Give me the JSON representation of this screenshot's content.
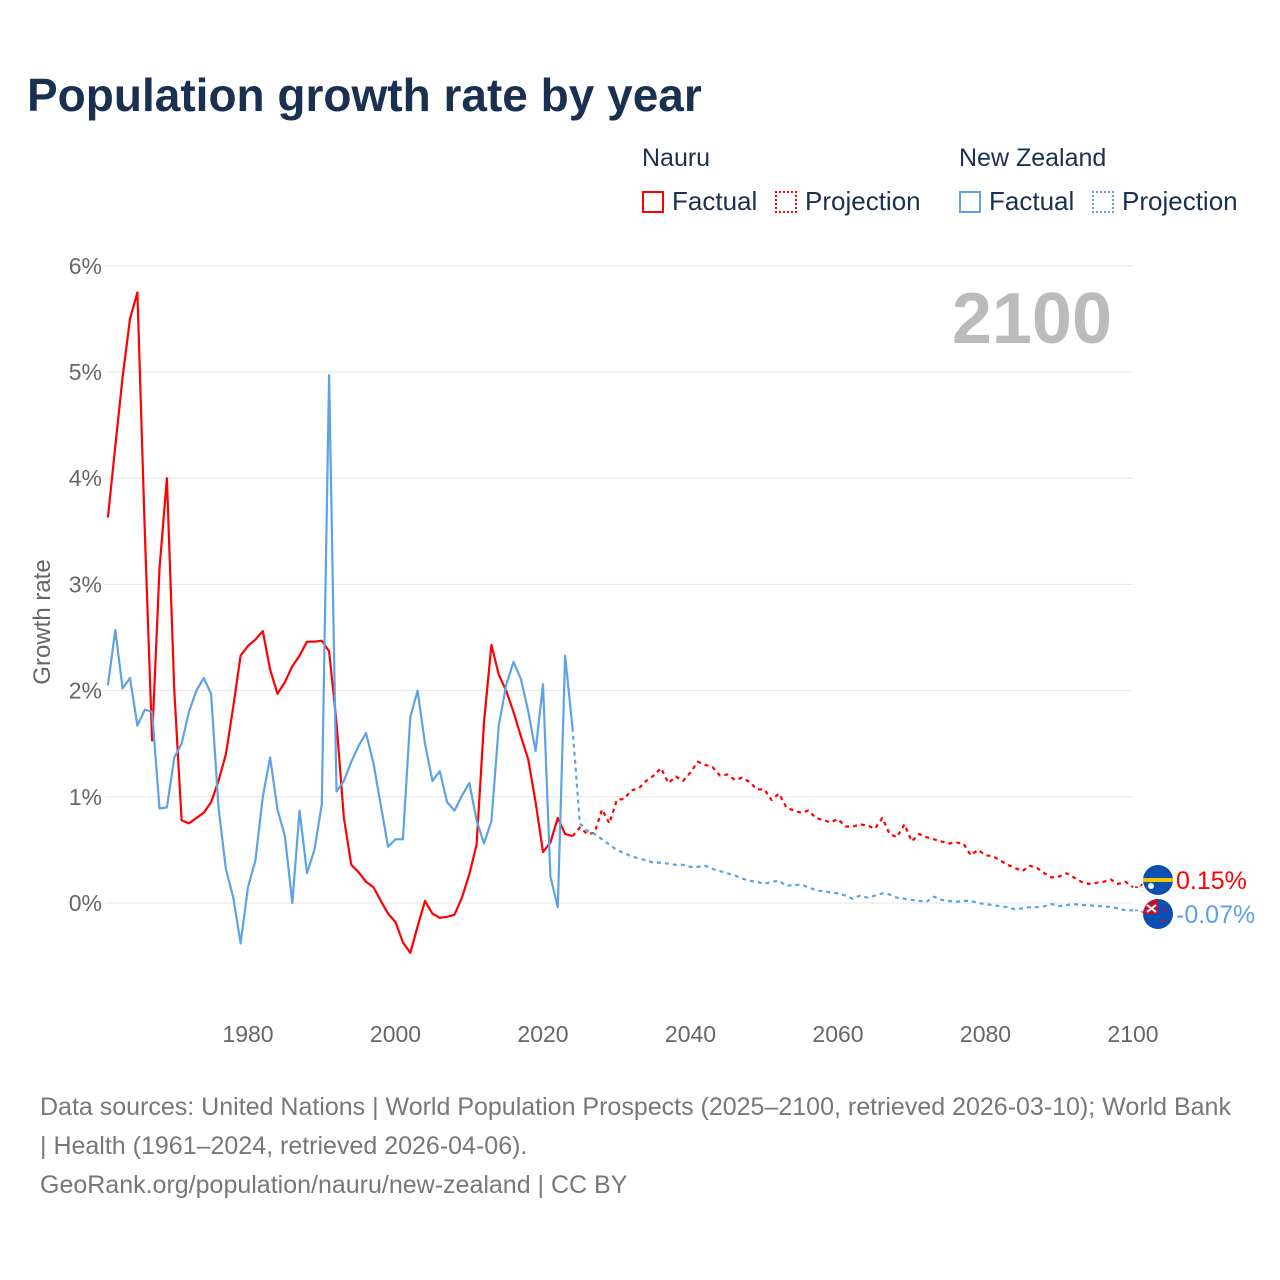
{
  "title": "Population growth rate by year",
  "legend": {
    "groups": [
      {
        "name": "Nauru",
        "factual": "Factual",
        "projection": "Projection",
        "color": "#ff0000"
      },
      {
        "name": "New Zealand",
        "factual": "Factual",
        "projection": "Projection",
        "color": "#5ba3e6"
      }
    ]
  },
  "chart_data": {
    "type": "line",
    "title": "Population growth rate by year",
    "xlabel": "",
    "ylabel": "Growth rate",
    "xlim": [
      1961,
      2100
    ],
    "ylim": [
      -0.8,
      6
    ],
    "x_ticks": [
      1980,
      2000,
      2020,
      2040,
      2060,
      2080,
      2100
    ],
    "x_tick_labels": [
      "1980",
      "2000",
      "2020",
      "2040",
      "2060",
      "2080",
      "2100"
    ],
    "y_ticks": [
      0,
      1,
      2,
      3,
      4,
      5,
      6
    ],
    "y_tick_labels": [
      "0%",
      "1%",
      "2%",
      "3%",
      "4%",
      "5%",
      "6%"
    ],
    "grid": true,
    "year_overlay": "2100",
    "series": [
      {
        "name": "Nauru Factual",
        "color": "#ff0000",
        "style": "solid",
        "x_start": 1961,
        "values": [
          3.63,
          4.3,
          4.95,
          5.5,
          5.75,
          3.5,
          1.53,
          3.15,
          4.0,
          2.0,
          0.78,
          0.75,
          0.8,
          0.85,
          0.95,
          1.15,
          1.4,
          1.85,
          2.33,
          2.42,
          2.48,
          2.56,
          2.2,
          1.97,
          2.08,
          2.23,
          2.33,
          2.46,
          2.46,
          2.47,
          2.37,
          1.7,
          0.8,
          0.36,
          0.29,
          0.2,
          0.15,
          0.02,
          -0.1,
          -0.18,
          -0.37,
          -0.47,
          -0.22,
          0.02,
          -0.1,
          -0.14,
          -0.13,
          -0.11,
          0.05,
          0.27,
          0.55,
          1.7,
          2.43,
          2.15,
          2.0,
          1.8,
          1.57,
          1.35,
          0.95,
          0.48,
          0.57,
          0.8,
          0.65,
          0.63
        ]
      },
      {
        "name": "Nauru Projection",
        "color": "#ff0000",
        "style": "dotted",
        "x_start": 2024,
        "values": [
          0.63,
          0.71,
          0.65,
          0.66,
          0.88,
          0.75,
          0.97,
          0.98,
          1.06,
          1.08,
          1.15,
          1.2,
          1.27,
          1.13,
          1.19,
          1.15,
          1.23,
          1.33,
          1.3,
          1.28,
          1.2,
          1.21,
          1.16,
          1.18,
          1.14,
          1.07,
          1.07,
          0.97,
          1.03,
          0.9,
          0.87,
          0.85,
          0.87,
          0.8,
          0.78,
          0.76,
          0.79,
          0.72,
          0.72,
          0.74,
          0.73,
          0.7,
          0.8,
          0.65,
          0.62,
          0.74,
          0.58,
          0.65,
          0.62,
          0.6,
          0.58,
          0.56,
          0.57,
          0.56,
          0.45,
          0.5,
          0.45,
          0.44,
          0.4,
          0.36,
          0.33,
          0.3,
          0.35,
          0.33,
          0.28,
          0.24,
          0.25,
          0.28,
          0.24,
          0.2,
          0.18,
          0.19,
          0.2,
          0.22,
          0.18,
          0.2,
          0.15
        ]
      },
      {
        "name": "New Zealand Factual",
        "color": "#5ba3e6",
        "style": "solid",
        "x_start": 1961,
        "values": [
          2.05,
          2.57,
          2.02,
          2.12,
          1.67,
          1.82,
          1.8,
          0.89,
          0.9,
          1.37,
          1.5,
          1.8,
          2.0,
          2.12,
          1.97,
          0.9,
          0.32,
          0.05,
          -0.38,
          0.15,
          0.4,
          1.0,
          1.37,
          0.88,
          0.63,
          0.0,
          0.87,
          0.28,
          0.5,
          0.93,
          4.97,
          1.05,
          1.15,
          1.33,
          1.48,
          1.6,
          1.32,
          0.92,
          0.53,
          0.6,
          0.6,
          1.75,
          2.0,
          1.5,
          1.15,
          1.24,
          0.95,
          0.87,
          1.01,
          1.13,
          0.78,
          0.56,
          0.77,
          1.67,
          2.05,
          2.27,
          2.11,
          1.8,
          1.43,
          2.06,
          0.25,
          -0.04,
          2.33,
          1.65
        ]
      },
      {
        "name": "New Zealand Projection",
        "color": "#5ba3e6",
        "style": "dotted",
        "x_start": 2024,
        "values": [
          1.65,
          0.75,
          0.68,
          0.65,
          0.6,
          0.55,
          0.5,
          0.47,
          0.44,
          0.42,
          0.4,
          0.38,
          0.38,
          0.37,
          0.36,
          0.36,
          0.34,
          0.34,
          0.35,
          0.32,
          0.3,
          0.28,
          0.26,
          0.23,
          0.21,
          0.2,
          0.18,
          0.2,
          0.21,
          0.16,
          0.17,
          0.17,
          0.15,
          0.12,
          0.11,
          0.1,
          0.09,
          0.07,
          0.04,
          0.07,
          0.05,
          0.07,
          0.09,
          0.08,
          0.05,
          0.04,
          0.03,
          0.02,
          0.01,
          0.06,
          0.03,
          0.02,
          0.01,
          0.02,
          0.02,
          0.0,
          -0.01,
          -0.02,
          -0.03,
          -0.04,
          -0.06,
          -0.05,
          -0.04,
          -0.04,
          -0.03,
          -0.01,
          -0.03,
          -0.02,
          -0.01,
          -0.02,
          -0.02,
          -0.03,
          -0.03,
          -0.04,
          -0.05,
          -0.07,
          -0.07
        ]
      }
    ],
    "end_labels": [
      {
        "series": "Nauru",
        "text": "0.15%",
        "value": 0.15,
        "color": "#ff0000"
      },
      {
        "series": "New Zealand",
        "text": "-0.07%",
        "value": -0.07,
        "color": "#5ba3e6"
      }
    ]
  },
  "footer": {
    "line1": "Data sources: United Nations | World Population Prospects (2025–2100, retrieved 2026-03-10); World Bank | Health (1961–2024, retrieved 2026-04-06).",
    "line2": "GeoRank.org/population/nauru/new-zealand | CC BY"
  }
}
